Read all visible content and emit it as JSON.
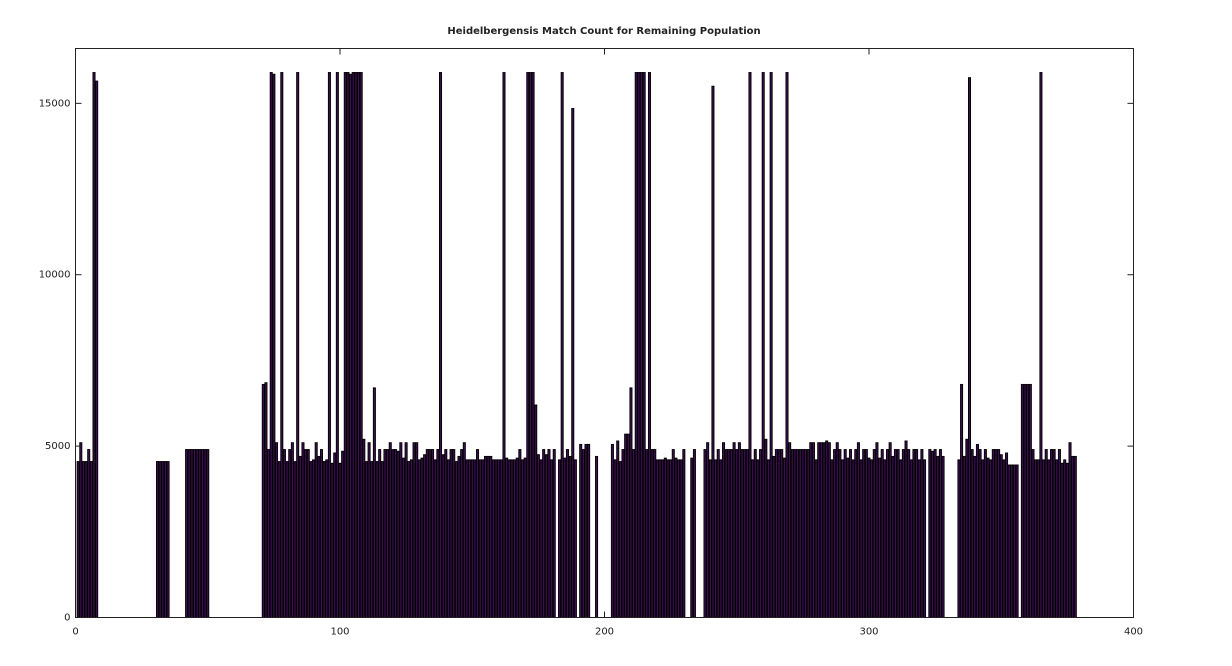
{
  "chart_data": {
    "type": "bar",
    "title": "Heidelbergensis Match Count for Remaining Population",
    "color": "#3b0f4f",
    "edgecolor": "#000000",
    "xlim": [
      0,
      400
    ],
    "xticks": [
      0,
      100,
      200,
      300,
      400
    ],
    "ylim": [
      0,
      16600
    ],
    "yticks": [
      0,
      5000,
      10000,
      15000
    ],
    "grid": false,
    "x": [
      1,
      2,
      3,
      4,
      5,
      6,
      7,
      8,
      9,
      10,
      11,
      12,
      13,
      14,
      15,
      16,
      17,
      18,
      19,
      20,
      21,
      22,
      23,
      24,
      25,
      26,
      27,
      28,
      29,
      30,
      31,
      32,
      33,
      34,
      35,
      36,
      37,
      38,
      39,
      40,
      41,
      42,
      43,
      44,
      45,
      46,
      47,
      48,
      49,
      50,
      51,
      52,
      53,
      54,
      55,
      56,
      57,
      58,
      59,
      60,
      61,
      62,
      63,
      64,
      65,
      66,
      67,
      68,
      69,
      70,
      71,
      72,
      73,
      74,
      75,
      76,
      77,
      78,
      79,
      80,
      81,
      82,
      83,
      84,
      85,
      86,
      87,
      88,
      89,
      90,
      91,
      92,
      93,
      94,
      95,
      96,
      97,
      98,
      99,
      100,
      101,
      102,
      103,
      104,
      105,
      106,
      107,
      108,
      109,
      110,
      111,
      112,
      113,
      114,
      115,
      116,
      117,
      118,
      119,
      120,
      121,
      122,
      123,
      124,
      125,
      126,
      127,
      128,
      129,
      130,
      131,
      132,
      133,
      134,
      135,
      136,
      137,
      138,
      139,
      140,
      141,
      142,
      143,
      144,
      145,
      146,
      147,
      148,
      149,
      150,
      151,
      152,
      153,
      154,
      155,
      156,
      157,
      158,
      159,
      160,
      161,
      162,
      163,
      164,
      165,
      166,
      167,
      168,
      169,
      170,
      171,
      172,
      173,
      174,
      175,
      176,
      177,
      178,
      179,
      180,
      181,
      182,
      183,
      184,
      185,
      186,
      187,
      188,
      189,
      190,
      191,
      192,
      193,
      194,
      195,
      196,
      197,
      198,
      199,
      200,
      201,
      202,
      203,
      204,
      205,
      206,
      207,
      208,
      209,
      210,
      211,
      212,
      213,
      214,
      215,
      216,
      217,
      218,
      219,
      220,
      221,
      222,
      223,
      224,
      225,
      226,
      227,
      228,
      229,
      230,
      231,
      232,
      233,
      234,
      235,
      236,
      237,
      238,
      239,
      240,
      241,
      242,
      243,
      244,
      245,
      246,
      247,
      248,
      249,
      250,
      251,
      252,
      253,
      254,
      255,
      256,
      257,
      258,
      259,
      260,
      261,
      262,
      263,
      264,
      265,
      266,
      267,
      268,
      269,
      270,
      271,
      272,
      273,
      274,
      275,
      276,
      277,
      278,
      279,
      280,
      281,
      282,
      283,
      284,
      285,
      286,
      287,
      288,
      289,
      290,
      291,
      292,
      293,
      294,
      295,
      296,
      297,
      298,
      299,
      300,
      301,
      302,
      303,
      304,
      305,
      306,
      307,
      308,
      309,
      310,
      311,
      312,
      313,
      314,
      315,
      316,
      317,
      318,
      319,
      320,
      321,
      322,
      323,
      324,
      325,
      326,
      327,
      328,
      329,
      330,
      331,
      332,
      333,
      334,
      335,
      336,
      337,
      338,
      339,
      340,
      341,
      342,
      343,
      344,
      345,
      346,
      347,
      348,
      349,
      350,
      351,
      352,
      353,
      354,
      355,
      356,
      357,
      358,
      359,
      360,
      361,
      362,
      363,
      364,
      365,
      366,
      367,
      368,
      369,
      370,
      371,
      372,
      373,
      374,
      375,
      376,
      377,
      378
    ],
    "values": [
      4550,
      5100,
      4550,
      4550,
      4900,
      4550,
      15900,
      15650,
      0,
      0,
      0,
      0,
      0,
      0,
      0,
      0,
      0,
      0,
      0,
      0,
      0,
      0,
      0,
      0,
      0,
      0,
      0,
      0,
      0,
      0,
      4550,
      4550,
      4550,
      4550,
      4550,
      0,
      0,
      0,
      0,
      0,
      0,
      4900,
      4900,
      4900,
      4900,
      4900,
      4900,
      4900,
      4900,
      4900,
      0,
      0,
      0,
      0,
      0,
      0,
      0,
      0,
      0,
      0,
      0,
      0,
      0,
      0,
      0,
      0,
      0,
      0,
      0,
      0,
      6800,
      6850,
      4900,
      15900,
      15850,
      5100,
      4550,
      15900,
      4900,
      4550,
      4900,
      5100,
      4550,
      15900,
      4700,
      5100,
      4900,
      4900,
      4550,
      4600,
      5100,
      4700,
      4900,
      4550,
      4600,
      15900,
      4500,
      4800,
      15900,
      4500,
      4850,
      15900,
      15900,
      15850,
      15900,
      15900,
      15900,
      15900,
      5200,
      4550,
      5100,
      4550,
      6700,
      4550,
      4900,
      4550,
      4900,
      4900,
      5100,
      4900,
      4900,
      4850,
      5100,
      4650,
      5100,
      4550,
      4600,
      5100,
      5100,
      4600,
      4650,
      4750,
      4900,
      4900,
      4900,
      4600,
      4900,
      15900,
      4750,
      4900,
      4600,
      4900,
      4900,
      4550,
      4700,
      4900,
      5100,
      4600,
      4600,
      4600,
      4600,
      4900,
      4600,
      4600,
      4700,
      4700,
      4700,
      4600,
      4600,
      4600,
      4600,
      15900,
      4650,
      4600,
      4600,
      4600,
      4650,
      4900,
      4600,
      4650,
      15900,
      15900,
      15900,
      6200,
      4750,
      4600,
      4900,
      4750,
      4900,
      4600,
      4900,
      0,
      4600,
      15900,
      4650,
      4900,
      4700,
      14850,
      4600,
      0,
      5050,
      4900,
      5050,
      5050,
      0,
      0,
      4700,
      0,
      0,
      0,
      0,
      0,
      5050,
      4600,
      5150,
      4550,
      4900,
      5350,
      5350,
      6700,
      4900,
      15900,
      15900,
      15900,
      15900,
      4900,
      15900,
      4900,
      4900,
      4600,
      4600,
      4600,
      4650,
      4600,
      4600,
      4900,
      4650,
      4600,
      4600,
      4900,
      0,
      0,
      4650,
      4900,
      0,
      0,
      0,
      4900,
      5100,
      4600,
      15500,
      4600,
      4900,
      4600,
      5100,
      4900,
      4900,
      4900,
      5100,
      4900,
      5100,
      4900,
      4900,
      4900,
      15900,
      4600,
      4900,
      4600,
      4900,
      15900,
      5200,
      4600,
      15900,
      4700,
      4900,
      4900,
      4900,
      4650,
      15900,
      5100,
      4900,
      4900,
      4900,
      4900,
      4900,
      4900,
      4900,
      5100,
      5100,
      4600,
      5100,
      5100,
      5100,
      5150,
      5100,
      4600,
      4900,
      5100,
      4900,
      4600,
      4900,
      4650,
      4900,
      4600,
      4900,
      5100,
      4600,
      4900,
      4900,
      4650,
      4600,
      4900,
      5100,
      4650,
      4900,
      4600,
      4900,
      5100,
      4700,
      4900,
      4900,
      4600,
      4900,
      5150,
      4900,
      4600,
      4900,
      4900,
      4600,
      4900,
      4600,
      0,
      4900,
      4850,
      4900,
      4700,
      4900,
      4700,
      0,
      0,
      0,
      0,
      0,
      4600,
      6800,
      4700,
      5200,
      15750,
      4900,
      4700,
      5050,
      4900,
      4600,
      4900,
      4650,
      4600,
      4900,
      4900,
      4900,
      4750,
      4600,
      4800,
      4450,
      4450,
      4450,
      4450,
      0,
      6800,
      6800,
      6800,
      6800,
      4900,
      4600,
      4600,
      15900,
      4600,
      4900,
      4600,
      4900,
      4900,
      4600,
      4900,
      4500,
      4600,
      4500,
      5100,
      4700,
      4700
    ]
  }
}
